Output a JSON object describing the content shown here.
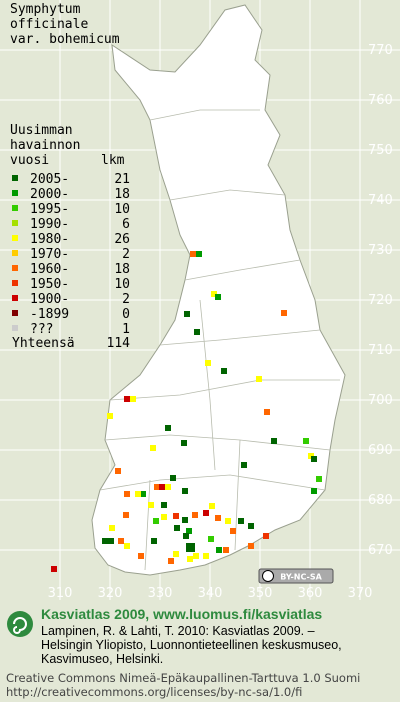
{
  "title": [
    "Symphytum",
    "officinale",
    "var. bohemicum"
  ],
  "legend": {
    "heading": [
      "Uusimman",
      "havainnon",
      "vuosi"
    ],
    "count_heading": "lkm",
    "items": [
      {
        "label": "2005-",
        "count": 21,
        "color": "#006400"
      },
      {
        "label": "2000-",
        "count": 18,
        "color": "#009a00"
      },
      {
        "label": "1995-",
        "count": 10,
        "color": "#33cc00"
      },
      {
        "label": "1990-",
        "count": 6,
        "color": "#a6e000"
      },
      {
        "label": "1980-",
        "count": 26,
        "color": "#ffff00"
      },
      {
        "label": "1970-",
        "count": 2,
        "color": "#ffcc00"
      },
      {
        "label": "1960-",
        "count": 18,
        "color": "#ff6600"
      },
      {
        "label": "1950-",
        "count": 10,
        "color": "#ee3300"
      },
      {
        "label": "1900-",
        "count": 2,
        "color": "#cc0000"
      },
      {
        "label": "-1899",
        "count": 0,
        "color": "#800000"
      },
      {
        "label": "???",
        "count": 1,
        "color": "#cccccc"
      }
    ],
    "total": {
      "label": "Yhteensä",
      "count": 114
    }
  },
  "grid": {
    "y_labels": [
      770,
      760,
      750,
      740,
      730,
      720,
      710,
      700,
      690,
      680,
      670
    ],
    "x_labels": [
      310,
      320,
      330,
      340,
      350,
      360,
      370
    ]
  },
  "badge": "BY-NC-SA",
  "footer": {
    "heading": "Kasviatlas 2009, www.luomus.fi/kasviatlas",
    "citation": [
      "Lampinen, R. & Lahti, T. 2010: Kasviatlas 2009. –",
      "Helsingin Yliopisto, Luonnontieteellinen keskusmuseo,",
      "Kasvimuseo, Helsinki."
    ],
    "license": [
      "Creative Commons Nimeä-Epäkaupallinen-Tarttuva 1.0 Suomi",
      "http://creativecommons.org/licenses/by-nc-sa/1.0/fi"
    ]
  }
}
